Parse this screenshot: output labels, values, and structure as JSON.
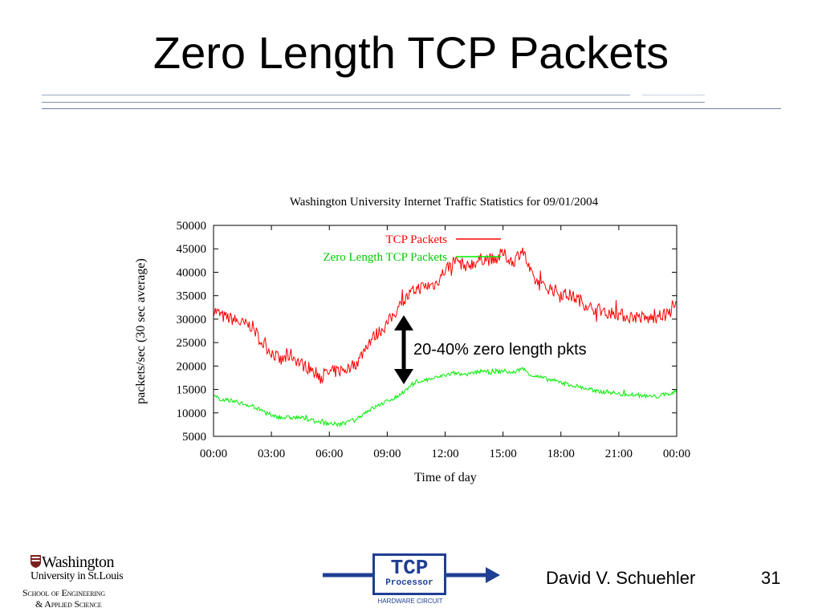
{
  "slide": {
    "title": "Zero Length TCP Packets",
    "author": "David V. Schuehler",
    "page_number": "31",
    "annotation": "20-40% zero length pkts"
  },
  "logos": {
    "university": {
      "line1": "Washington",
      "line2": "University in St.Louis",
      "line3": "School of Engineering",
      "line4": "& Applied Science"
    },
    "tcp_processor": {
      "big": "TCP",
      "small": "Processor",
      "caption": "HARDWARE CIRCUIT"
    }
  },
  "colors": {
    "tcp_series": "#ff0000",
    "zero_series": "#00ee00",
    "accent_blue": "#1f3f95"
  },
  "chart_data": {
    "type": "line",
    "title": "Washington University Internet Traffic Statistics for 09/01/2004",
    "xlabel": "Time of day",
    "ylabel": "packets/sec (30 sec average)",
    "xlim": [
      0,
      24
    ],
    "ylim": [
      5000,
      50000
    ],
    "x_tick_labels": [
      "00:00",
      "03:00",
      "06:00",
      "09:00",
      "12:00",
      "15:00",
      "18:00",
      "21:00",
      "00:00"
    ],
    "y_tick_labels": [
      "50000",
      "45000",
      "40000",
      "35000",
      "30000",
      "25000",
      "20000",
      "15000",
      "10000",
      "5000"
    ],
    "legend_position": "top-center",
    "grid": false,
    "series": [
      {
        "name": "TCP Packets",
        "x": [
          0,
          0.5,
          1,
          1.5,
          2,
          2.5,
          3,
          3.5,
          4,
          4.5,
          5,
          5.5,
          6,
          6.5,
          7,
          7.5,
          8,
          8.5,
          9,
          9.5,
          10,
          10.5,
          11,
          11.5,
          12,
          12.5,
          13,
          13.5,
          14,
          14.5,
          15,
          15.5,
          16,
          16.5,
          17,
          17.5,
          18,
          18.5,
          19,
          19.5,
          20,
          20.5,
          21,
          21.5,
          22,
          22.5,
          23,
          23.5,
          24
        ],
        "values": [
          32000,
          30500,
          30000,
          29000,
          28500,
          25000,
          23000,
          21000,
          22500,
          20500,
          19500,
          18000,
          18500,
          19000,
          19500,
          21000,
          25000,
          27000,
          29000,
          32000,
          34500,
          36500,
          37000,
          37500,
          40500,
          42500,
          41500,
          42000,
          43000,
          42500,
          44000,
          42000,
          45000,
          39000,
          37000,
          36500,
          35500,
          35000,
          34000,
          32500,
          32000,
          31500,
          31000,
          30500,
          30500,
          30000,
          30500,
          31000,
          33000
        ]
      },
      {
        "name": "Zero Length TCP Packets",
        "x": [
          0,
          0.5,
          1,
          1.5,
          2,
          2.5,
          3,
          3.5,
          4,
          4.5,
          5,
          5.5,
          6,
          6.5,
          7,
          7.5,
          8,
          8.5,
          9,
          9.5,
          10,
          10.5,
          11,
          11.5,
          12,
          12.5,
          13,
          13.5,
          14,
          14.5,
          15,
          15.5,
          16,
          16.5,
          17,
          17.5,
          18,
          18.5,
          19,
          19.5,
          20,
          20.5,
          21,
          21.5,
          22,
          22.5,
          23,
          23.5,
          24
        ],
        "values": [
          13500,
          12800,
          12500,
          12000,
          11500,
          10500,
          9500,
          9000,
          9000,
          9000,
          8500,
          8000,
          7800,
          7500,
          8000,
          9000,
          10500,
          11500,
          12500,
          13500,
          15000,
          16500,
          17000,
          17500,
          18000,
          18500,
          18000,
          18500,
          19000,
          18500,
          19000,
          18500,
          19500,
          18000,
          17500,
          17000,
          16500,
          16000,
          15500,
          15000,
          14500,
          14500,
          14000,
          14000,
          13800,
          13500,
          13500,
          14000,
          14500
        ]
      }
    ]
  }
}
